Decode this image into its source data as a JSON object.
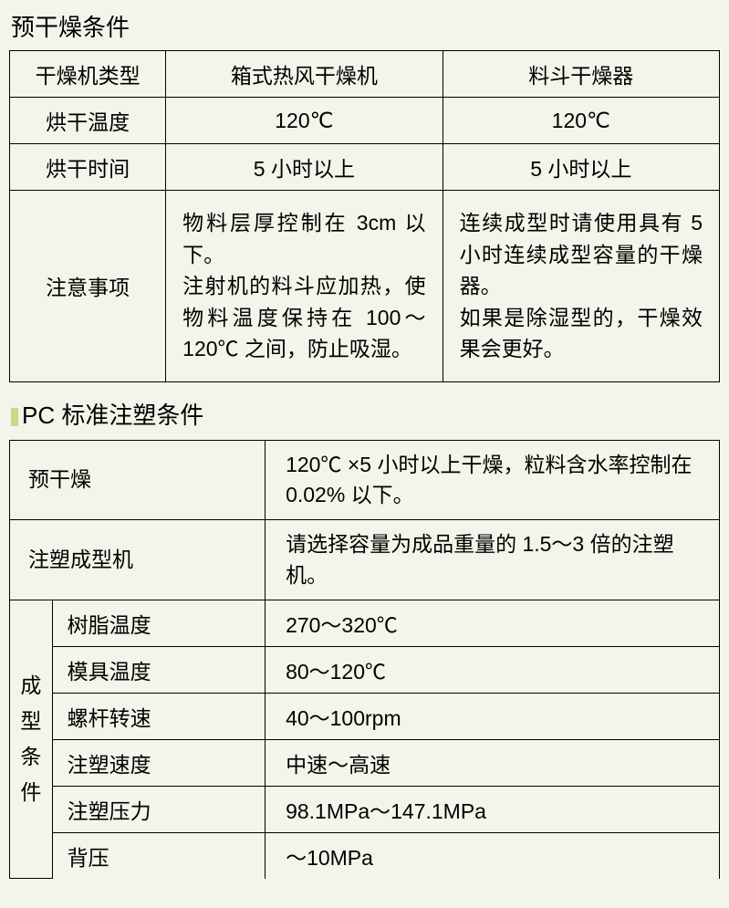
{
  "section1": {
    "title": "预干燥条件",
    "rows": {
      "r0": {
        "label": "干燥机类型",
        "c1": "箱式热风干燥机",
        "c2": "料斗干燥器"
      },
      "r1": {
        "label": "烘干温度",
        "c1": "120℃",
        "c2": "120℃"
      },
      "r2": {
        "label": "烘干时间",
        "c1": "5 小时以上",
        "c2": "5 小时以上"
      },
      "r3": {
        "label": "注意事项",
        "c1": "物料层厚控制在 3cm 以下。\n注射机的料斗应加热，使物料温度保持在 100～120℃ 之间，防止吸湿。",
        "c2": "连续成型时请使用具有 5 小时连续成型容量的干燥器。\n如果是除湿型的，干燥效果会更好。"
      }
    }
  },
  "section2": {
    "title": "PC 标准注塑条件",
    "rows": {
      "predry": {
        "k": "预干燥",
        "v": "120℃ ×5  小时以上干燥，粒料含水率控制在 0.02% 以下。"
      },
      "machine": {
        "k": "注塑成型机",
        "v": "请选择容量为成品重量的 1.5～3 倍的注塑机。"
      },
      "group_label": "成型条件",
      "sub": {
        "s0": {
          "k": "树脂温度",
          "v": "270～320℃"
        },
        "s1": {
          "k": "模具温度",
          "v": "80～120℃"
        },
        "s2": {
          "k": "螺杆转速",
          "v": "40～100rpm"
        },
        "s3": {
          "k": "注塑速度",
          "v": "中速～高速"
        },
        "s4": {
          "k": "注塑压力",
          "v": "98.1MPa～147.1MPa"
        },
        "s5": {
          "k": "背压",
          "v": " ～10MPa"
        }
      }
    }
  },
  "colors": {
    "background": "#f3f4ea",
    "border": "#000000",
    "text": "#000000",
    "bullet": "#c8d88a"
  },
  "typography": {
    "title_fontsize": 26,
    "cell_fontsize": 23,
    "font_family": "Microsoft YaHei / SimSun"
  }
}
